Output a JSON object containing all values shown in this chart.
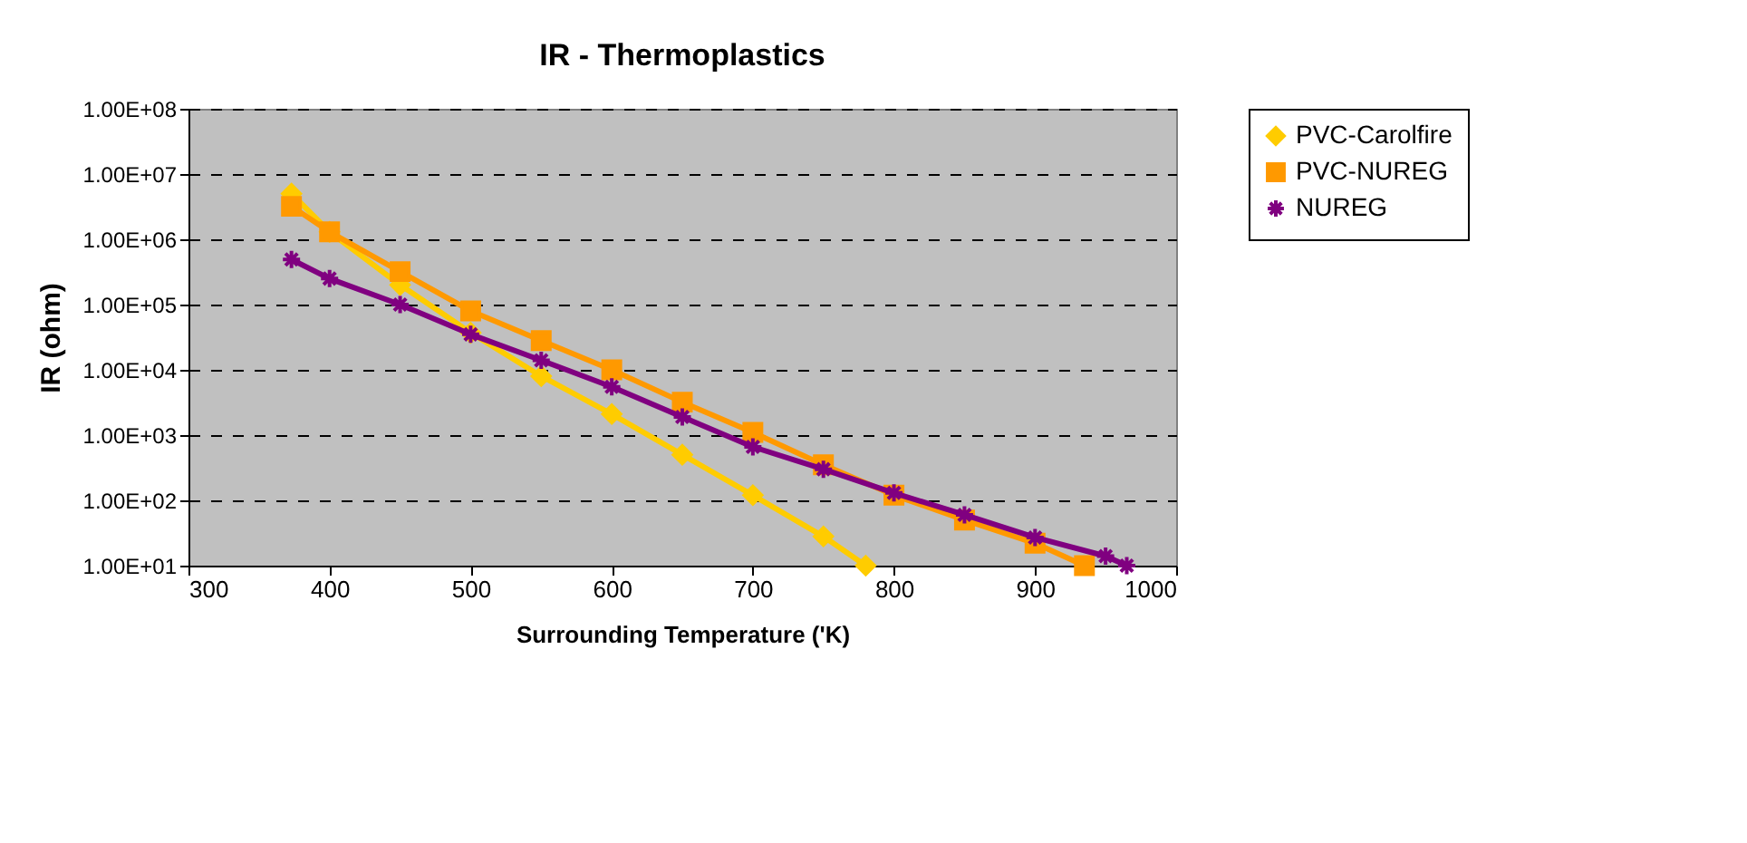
{
  "chart_data": {
    "type": "line",
    "title": "IR - Thermoplastics",
    "xlabel": "Surrounding Temperature ('K)",
    "ylabel": "IR (ohm)",
    "log": "y",
    "grid": "y",
    "legend": "right",
    "xlim": [
      300,
      1000
    ],
    "xticks": [
      300,
      400,
      500,
      600,
      700,
      800,
      900,
      1000
    ],
    "ylim": [
      10,
      100000000
    ],
    "yticks": [
      {
        "value": 10,
        "label": "1.00E+01"
      },
      {
        "value": 100,
        "label": "1.00E+02"
      },
      {
        "value": 1000,
        "label": "1.00E+03"
      },
      {
        "value": 10000,
        "label": "1.00E+04"
      },
      {
        "value": 100000,
        "label": "1.00E+05"
      },
      {
        "value": 1000000,
        "label": "1.00E+06"
      },
      {
        "value": 10000000,
        "label": "1.00E+07"
      },
      {
        "value": 100000000,
        "label": "1.00E+08"
      }
    ],
    "series": [
      {
        "name": "PVC-Carolfire",
        "color": "#ffcc00",
        "marker": "diamond",
        "x": [
          373,
          400,
          450,
          500,
          550,
          600,
          650,
          700,
          750,
          780
        ],
        "values": [
          5000000,
          1300000,
          200000,
          37000,
          8000,
          2100,
          500,
          120,
          28,
          10
        ]
      },
      {
        "name": "PVC-NUREG",
        "color": "#ff9900",
        "marker": "square",
        "x": [
          373,
          400,
          450,
          500,
          550,
          600,
          650,
          700,
          750,
          800,
          850,
          900,
          935
        ],
        "values": [
          3200000,
          1300000,
          320000,
          80000,
          28000,
          10000,
          3200,
          1100,
          350,
          120,
          50,
          22,
          10
        ]
      },
      {
        "name": "NUREG",
        "color": "#800080",
        "marker": "cross",
        "x": [
          373,
          400,
          450,
          500,
          550,
          600,
          650,
          700,
          750,
          800,
          850,
          900,
          950,
          965
        ],
        "values": [
          490000,
          250000,
          100000,
          35000,
          14000,
          5500,
          1900,
          660,
          300,
          130,
          60,
          27,
          14,
          10
        ]
      }
    ]
  }
}
